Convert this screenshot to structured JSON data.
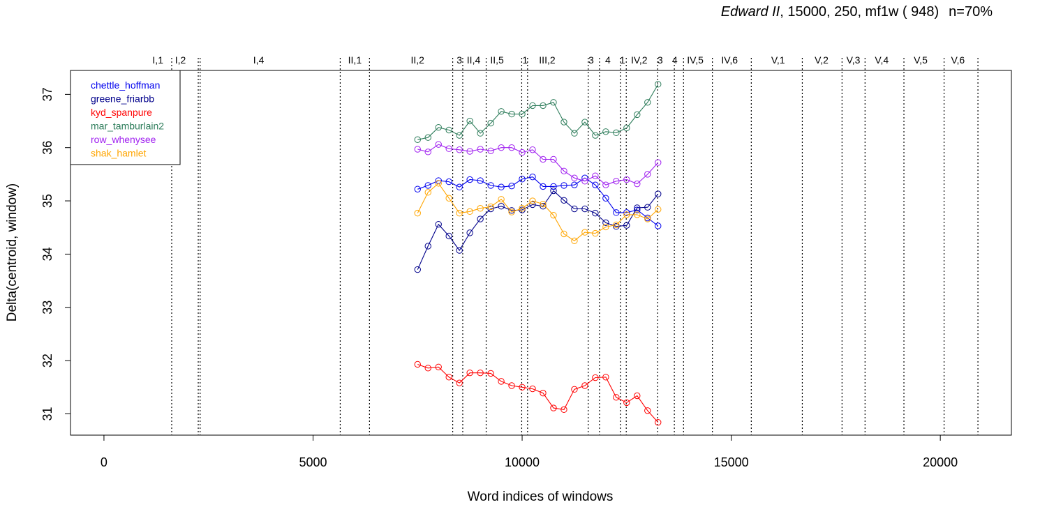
{
  "title": {
    "play": "Edward II",
    "params": ", 15000, 250, mf1w ( 948)",
    "n": "n=70%"
  },
  "chart_data": {
    "type": "line",
    "title": "Edward II, 15000, 250, mf1w ( 948)   n=70%",
    "xlabel": "Word indices of windows",
    "ylabel": "Delta(centroid, window)",
    "xlim": [
      -800,
      21700
    ],
    "ylim": [
      30.6,
      37.45
    ],
    "xticks": [
      0,
      5000,
      10000,
      15000,
      20000
    ],
    "yticks": [
      31,
      32,
      33,
      34,
      35,
      36,
      37
    ],
    "grid": false,
    "legend_position": "top-left",
    "x": [
      7500,
      7750,
      8000,
      8250,
      8500,
      8750,
      9000,
      9250,
      9500,
      9750,
      10000,
      10250,
      10500,
      10750,
      11000,
      11250,
      11500,
      11750,
      12000,
      12250,
      12500,
      12750,
      13000,
      13250
    ],
    "series": [
      {
        "name": "chettle_hoffman",
        "color": "#0000EE",
        "values": [
          35.22,
          35.29,
          35.38,
          35.36,
          35.26,
          35.4,
          35.38,
          35.29,
          35.26,
          35.28,
          35.41,
          35.45,
          35.27,
          35.27,
          35.29,
          35.3,
          35.43,
          35.3,
          35.05,
          34.78,
          34.78,
          34.83,
          34.68,
          34.53
        ]
      },
      {
        "name": "greene_friarbb",
        "color": "#00008B",
        "values": [
          33.71,
          34.15,
          34.56,
          34.34,
          34.07,
          34.4,
          34.66,
          34.85,
          34.9,
          34.82,
          34.83,
          34.93,
          34.9,
          35.19,
          35.01,
          34.85,
          34.85,
          34.77,
          34.59,
          34.52,
          34.54,
          34.87,
          34.88,
          35.13
        ]
      },
      {
        "name": "kyd_spanpure",
        "color": "#FF0000",
        "values": [
          31.93,
          31.86,
          31.88,
          31.69,
          31.58,
          31.77,
          31.77,
          31.76,
          31.61,
          31.53,
          31.5,
          31.47,
          31.39,
          31.11,
          31.08,
          31.46,
          31.53,
          31.68,
          31.69,
          31.31,
          31.21,
          31.34,
          31.06,
          30.84
        ]
      },
      {
        "name": "mar_tamburlain2",
        "color": "#2E7D5B",
        "values": [
          36.15,
          36.19,
          36.38,
          36.33,
          36.23,
          36.5,
          36.27,
          36.46,
          36.68,
          36.63,
          36.63,
          36.79,
          36.79,
          36.85,
          36.48,
          36.27,
          36.48,
          36.23,
          36.3,
          36.28,
          36.37,
          36.62,
          36.85,
          37.19
        ]
      },
      {
        "name": "row_whenysee",
        "color": "#A020F0",
        "values": [
          35.97,
          35.92,
          36.06,
          35.98,
          35.96,
          35.93,
          35.97,
          35.94,
          36.0,
          36.0,
          35.91,
          35.96,
          35.78,
          35.78,
          35.56,
          35.43,
          35.37,
          35.47,
          35.3,
          35.37,
          35.4,
          35.32,
          35.5,
          35.72
        ]
      },
      {
        "name": "shak_hamlet",
        "color": "#FFA500",
        "values": [
          34.77,
          35.16,
          35.33,
          35.05,
          34.77,
          34.8,
          34.86,
          34.89,
          35.03,
          34.79,
          34.86,
          35.0,
          34.94,
          34.73,
          34.38,
          34.25,
          34.41,
          34.39,
          34.51,
          34.55,
          34.74,
          34.74,
          34.66,
          34.84
        ]
      }
    ],
    "act_scene_boundaries": [
      1620,
      2255,
      2300,
      5650,
      6350,
      8340,
      8580,
      9140,
      9990,
      10130,
      11580,
      11850,
      12350,
      12490,
      13240,
      13640,
      13860,
      14550,
      15480,
      16700,
      17650,
      18200,
      19130,
      20090,
      20900
    ],
    "act_scene_labels": [
      {
        "label": "I,1",
        "x": 1290
      },
      {
        "label": "I,2",
        "x": 1830
      },
      {
        "label": "I,4",
        "x": 3700
      },
      {
        "label": "II,1",
        "x": 6000
      },
      {
        "label": "II,2",
        "x": 7500
      },
      {
        "label": "3",
        "x": 8500
      },
      {
        "label": "II,4",
        "x": 8840
      },
      {
        "label": "II,5",
        "x": 9400
      },
      {
        "label": "1",
        "x": 10070
      },
      {
        "label": "III,2",
        "x": 10600
      },
      {
        "label": "3",
        "x": 11650
      },
      {
        "label": "4",
        "x": 12050
      },
      {
        "label": "1",
        "x": 12400
      },
      {
        "label": "IV,2",
        "x": 12800
      },
      {
        "label": "3",
        "x": 13300
      },
      {
        "label": "4",
        "x": 13650
      },
      {
        "label": "IV,5",
        "x": 14140
      },
      {
        "label": "IV,6",
        "x": 14960
      },
      {
        "label": "V,1",
        "x": 16120
      },
      {
        "label": "V,2",
        "x": 17160
      },
      {
        "label": "V,3",
        "x": 17920
      },
      {
        "label": "V,4",
        "x": 18600
      },
      {
        "label": "V,5",
        "x": 19530
      },
      {
        "label": "V,6",
        "x": 20420
      }
    ]
  }
}
